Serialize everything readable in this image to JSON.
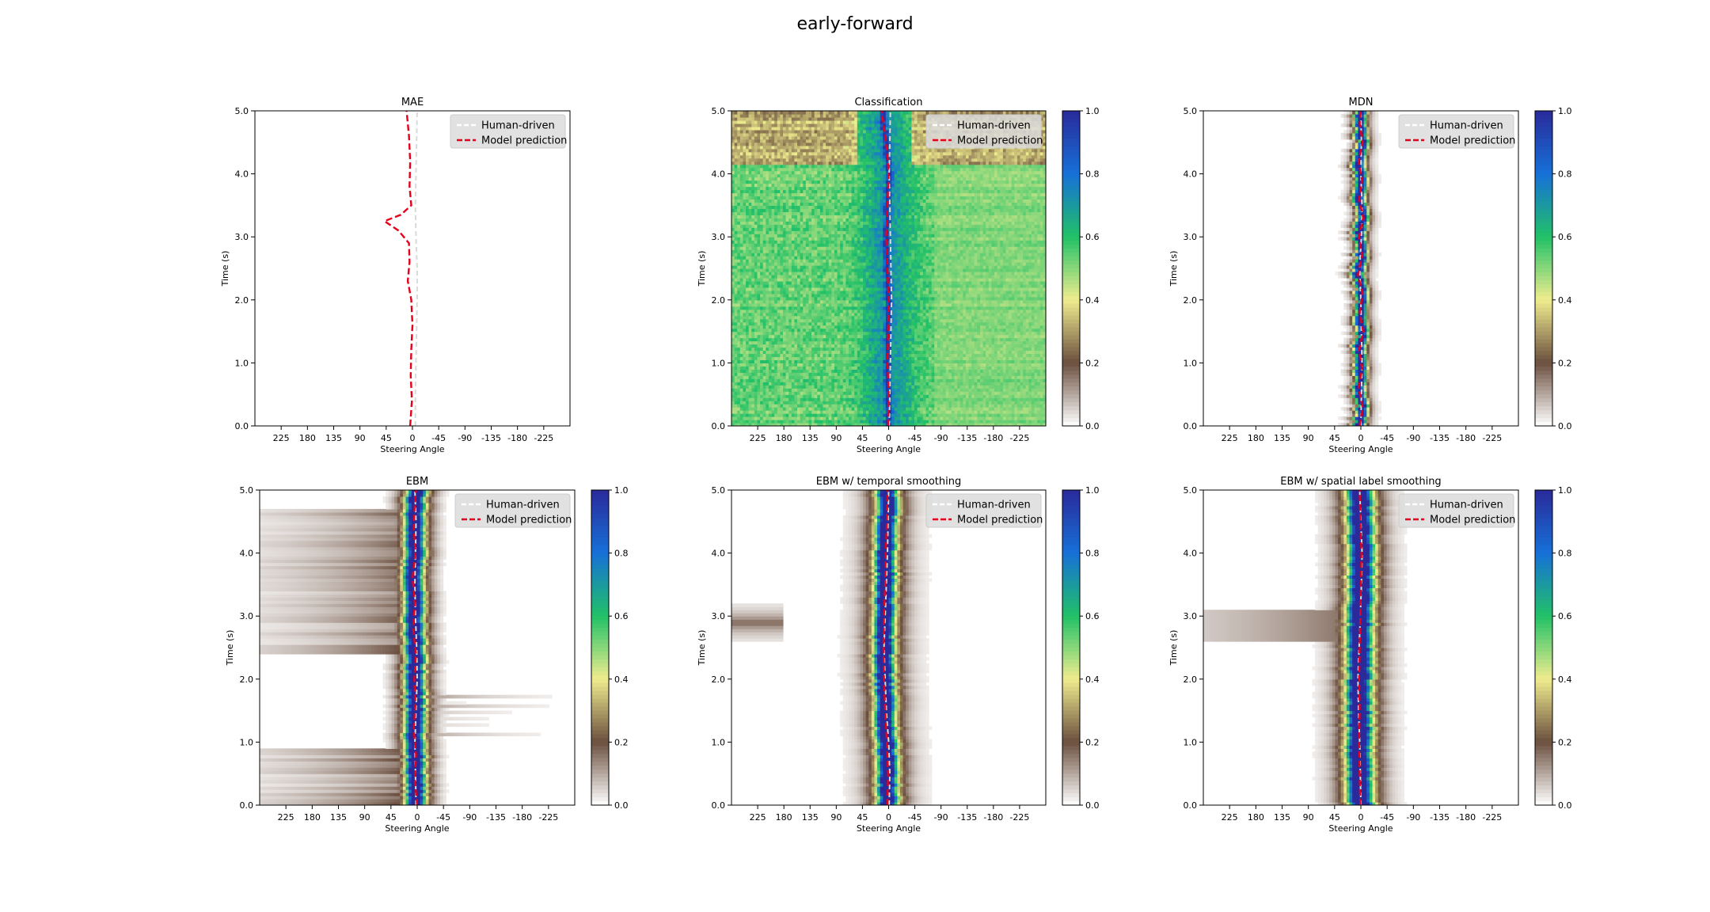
{
  "figure": {
    "title": "early-forward"
  },
  "colors": {
    "human": "#d9d9d9",
    "model": "#e6001a",
    "colormap": [
      "#ffffff",
      "#6b4f3f",
      "#efec8e",
      "#21c167",
      "#1670d8",
      "#2a2a9a"
    ]
  },
  "chart_data": [
    {
      "type": "heatmap",
      "title": "MAE",
      "xlabel": "Steering Angle",
      "ylabel": "Time (s)",
      "xlim": [
        270,
        -270
      ],
      "ylim": [
        0,
        5
      ],
      "xticks": [
        "225",
        "180",
        "135",
        "90",
        "45",
        "0",
        "-45",
        "-90",
        "-135",
        "-180",
        "-225"
      ],
      "yticks": [
        "0.0",
        "1.0",
        "2.0",
        "3.0",
        "4.0",
        "5.0"
      ],
      "legend": {
        "position": "top-right",
        "entries": [
          "Human-driven",
          "Model prediction"
        ]
      },
      "colorbar": false,
      "density": "none",
      "series": [
        {
          "name": "Human-driven",
          "t": [
            0,
            0.5,
            1,
            1.5,
            2,
            2.5,
            3,
            3.5,
            4,
            4.5,
            5
          ],
          "angle": [
            -5,
            -5,
            -6,
            -7,
            -8,
            -8,
            -6,
            -5,
            -6,
            -7,
            -8
          ]
        },
        {
          "name": "Model prediction",
          "t": [
            0,
            0.4,
            0.8,
            1.2,
            1.6,
            2,
            2.3,
            2.6,
            2.9,
            3.1,
            3.25,
            3.35,
            3.5,
            3.8,
            4.2,
            4.6,
            5
          ],
          "angle": [
            4,
            1,
            3,
            2,
            0,
            2,
            8,
            5,
            6,
            24,
            48,
            20,
            2,
            5,
            4,
            6,
            10
          ]
        }
      ]
    },
    {
      "type": "heatmap",
      "title": "Classification",
      "xlabel": "Steering Angle",
      "ylabel": "Time (s)",
      "xlim": [
        270,
        -270
      ],
      "ylim": [
        0,
        5
      ],
      "xticks": [
        "225",
        "180",
        "135",
        "90",
        "45",
        "0",
        "-45",
        "-90",
        "-135",
        "-180",
        "-225"
      ],
      "yticks": [
        "0.0",
        "1.0",
        "2.0",
        "3.0",
        "4.0",
        "5.0"
      ],
      "legend": {
        "position": "top-right",
        "entries": [
          "Human-driven",
          "Model prediction"
        ]
      },
      "colorbar": true,
      "colorbar_ticks": [
        "0.0",
        "0.2",
        "0.4",
        "0.6",
        "0.8",
        "1.0"
      ],
      "density": "classification",
      "series": [
        {
          "name": "Human-driven",
          "t": [
            0,
            0.5,
            1,
            1.5,
            2,
            2.5,
            3,
            3.5,
            4,
            4.5,
            5
          ],
          "angle": [
            -1,
            -2,
            -3,
            -4,
            -5,
            -4,
            -3,
            -2,
            -1,
            -2,
            -3
          ]
        },
        {
          "name": "Model prediction",
          "t": [
            0,
            0.5,
            1,
            1.5,
            2,
            2.5,
            3,
            3.5,
            4,
            4.3,
            4.6,
            5
          ],
          "angle": [
            1,
            0,
            2,
            1,
            0,
            2,
            4,
            2,
            0,
            2,
            6,
            12
          ]
        }
      ]
    },
    {
      "type": "heatmap",
      "title": "MDN",
      "xlabel": "Steering Angle",
      "ylabel": "Time (s)",
      "xlim": [
        270,
        -270
      ],
      "ylim": [
        0,
        5
      ],
      "xticks": [
        "225",
        "180",
        "135",
        "90",
        "45",
        "0",
        "-45",
        "-90",
        "-135",
        "-180",
        "-225"
      ],
      "yticks": [
        "0.0",
        "1.0",
        "2.0",
        "3.0",
        "4.0",
        "5.0"
      ],
      "legend": {
        "position": "top-right",
        "entries": [
          "Human-driven",
          "Model prediction"
        ]
      },
      "colorbar": true,
      "colorbar_ticks": [
        "0.0",
        "0.2",
        "0.4",
        "0.6",
        "0.8",
        "1.0"
      ],
      "density": "mdn",
      "series": [
        {
          "name": "Human-driven",
          "t": [
            0,
            0.5,
            1,
            1.5,
            2,
            2.5,
            3,
            3.5,
            4,
            4.5,
            5
          ],
          "angle": [
            0,
            -1,
            -2,
            -1,
            0,
            2,
            -1,
            -2,
            0,
            -1,
            0
          ]
        },
        {
          "name": "Model prediction",
          "t": [
            0,
            0.3,
            0.6,
            0.9,
            1.2,
            1.5,
            1.8,
            2.1,
            2.4,
            2.7,
            3.0,
            3.3,
            3.6,
            3.9,
            4.2,
            4.5,
            4.8,
            5
          ],
          "angle": [
            2,
            -3,
            4,
            -2,
            3,
            -4,
            2,
            -3,
            5,
            -2,
            3,
            -4,
            3,
            -2,
            4,
            -3,
            2,
            0
          ]
        }
      ]
    },
    {
      "type": "heatmap",
      "title": "EBM",
      "xlabel": "Steering Angle",
      "ylabel": "Time (s)",
      "xlim": [
        270,
        -270
      ],
      "ylim": [
        0,
        5
      ],
      "xticks": [
        "225",
        "180",
        "135",
        "90",
        "45",
        "0",
        "-45",
        "-90",
        "-135",
        "-180",
        "-225"
      ],
      "yticks": [
        "0.0",
        "1.0",
        "2.0",
        "3.0",
        "4.0",
        "5.0"
      ],
      "legend": {
        "position": "top-right",
        "entries": [
          "Human-driven",
          "Model prediction"
        ]
      },
      "colorbar": true,
      "colorbar_ticks": [
        "0.0",
        "0.2",
        "0.4",
        "0.6",
        "0.8",
        "1.0"
      ],
      "density": "ebm",
      "series": [
        {
          "name": "Human-driven",
          "t": [
            0,
            0.5,
            1,
            1.5,
            2,
            2.5,
            3,
            3.5,
            4,
            4.5,
            5
          ],
          "angle": [
            2,
            3,
            4,
            2,
            0,
            1,
            3,
            4,
            3,
            2,
            4
          ]
        },
        {
          "name": "Model prediction",
          "t": [
            0,
            0.4,
            0.8,
            1.2,
            1.6,
            2,
            2.4,
            2.8,
            3.2,
            3.6,
            4,
            4.4,
            4.8,
            5
          ],
          "angle": [
            0,
            4,
            2,
            6,
            3,
            5,
            2,
            7,
            4,
            8,
            3,
            6,
            4,
            2
          ]
        }
      ]
    },
    {
      "type": "heatmap",
      "title": "EBM w/ temporal smoothing",
      "xlabel": "Steering Angle",
      "ylabel": "Time (s)",
      "xlim": [
        270,
        -270
      ],
      "ylim": [
        0,
        5
      ],
      "xticks": [
        "225",
        "180",
        "135",
        "90",
        "45",
        "0",
        "-45",
        "-90",
        "-135",
        "-180",
        "-225"
      ],
      "yticks": [
        "0.0",
        "1.0",
        "2.0",
        "3.0",
        "4.0",
        "5.0"
      ],
      "legend": {
        "position": "top-right",
        "entries": [
          "Human-driven",
          "Model prediction"
        ]
      },
      "colorbar": true,
      "colorbar_ticks": [
        "0.0",
        "0.2",
        "0.4",
        "0.6",
        "0.8",
        "1.0"
      ],
      "density": "ebm_temporal",
      "series": [
        {
          "name": "Human-driven",
          "t": [
            0,
            0.5,
            1,
            1.5,
            2,
            2.5,
            3,
            3.5,
            4,
            4.5,
            5
          ],
          "angle": [
            -1,
            -2,
            0,
            4,
            6,
            8,
            6,
            4,
            2,
            1,
            0
          ]
        },
        {
          "name": "Model prediction",
          "t": [
            0,
            0.5,
            1,
            1.5,
            2,
            2.5,
            3,
            3.5,
            4,
            4.5,
            5
          ],
          "angle": [
            2,
            1,
            3,
            6,
            8,
            9,
            8,
            6,
            5,
            3,
            2
          ]
        }
      ]
    },
    {
      "type": "heatmap",
      "title": "EBM w/ spatial label smoothing",
      "xlabel": "Steering Angle",
      "ylabel": "Time (s)",
      "xlim": [
        270,
        -270
      ],
      "ylim": [
        0,
        5
      ],
      "xticks": [
        "225",
        "180",
        "135",
        "90",
        "45",
        "0",
        "-45",
        "-90",
        "-135",
        "-180",
        "-225"
      ],
      "yticks": [
        "0.0",
        "1.0",
        "2.0",
        "3.0",
        "4.0",
        "5.0"
      ],
      "legend": {
        "position": "top-right",
        "entries": [
          "Human-driven",
          "Model prediction"
        ]
      },
      "colorbar": true,
      "colorbar_ticks": [
        "0.0",
        "0.2",
        "0.4",
        "0.6",
        "0.8",
        "1.0"
      ],
      "density": "ebm_spatial",
      "series": [
        {
          "name": "Human-driven",
          "t": [
            0,
            0.5,
            1,
            1.5,
            2,
            2.5,
            3,
            3.5,
            4,
            4.5,
            5
          ],
          "angle": [
            0,
            1,
            2,
            4,
            5,
            3,
            1,
            -1,
            -2,
            0,
            2
          ]
        },
        {
          "name": "Model prediction",
          "t": [
            0,
            0.5,
            1,
            1.5,
            2,
            2.5,
            3,
            3.5,
            4,
            4.5,
            5
          ],
          "angle": [
            1,
            2,
            3,
            2,
            3,
            2,
            1,
            0,
            -1,
            1,
            2
          ]
        }
      ]
    }
  ]
}
